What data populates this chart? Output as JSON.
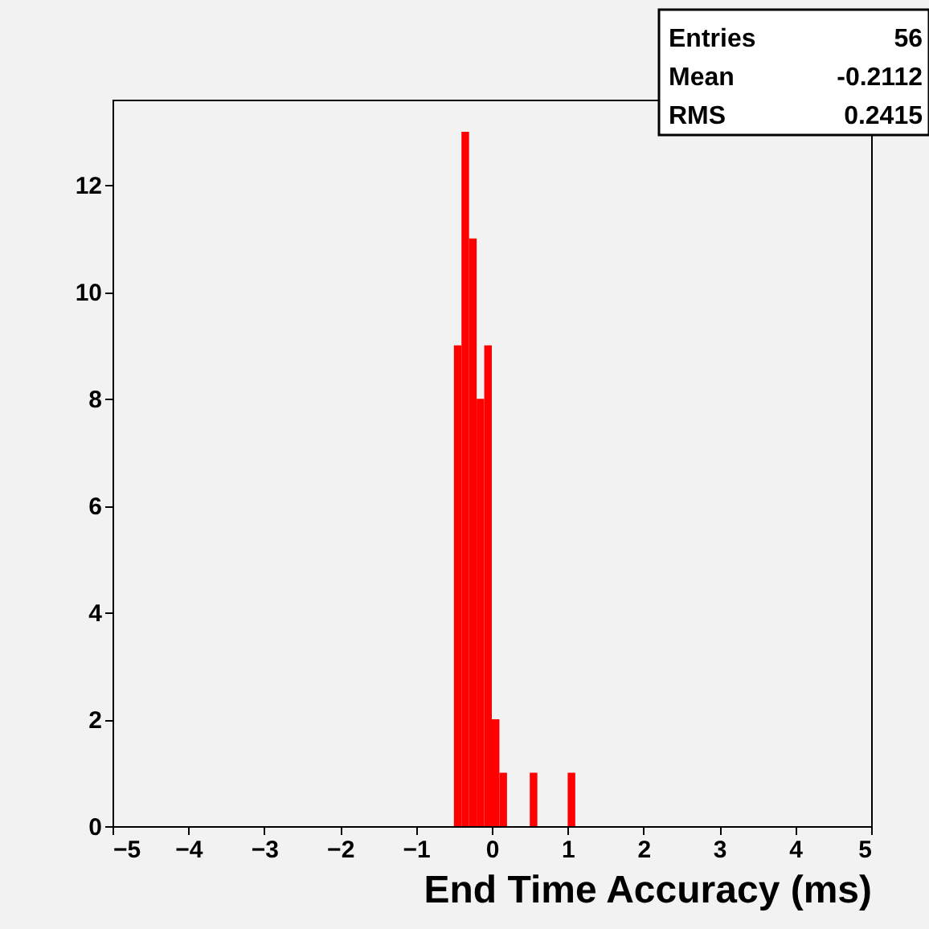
{
  "chart_data": {
    "type": "histogram",
    "bins": [
      -0.5,
      -0.4,
      -0.3,
      -0.2,
      -0.1,
      0,
      0.1,
      0.2,
      0.3,
      0.4,
      0.5,
      0.6,
      0.7,
      0.8,
      0.9,
      1.0,
      1.1
    ],
    "values": [
      9,
      13,
      11,
      8,
      9,
      2,
      1,
      0,
      0,
      0,
      1,
      0,
      0,
      0,
      0,
      1
    ],
    "color": "#ff0000",
    "xlabel": "End Time Accuracy (ms)",
    "xlim": [
      -5,
      5
    ],
    "xticks": [
      -5,
      -4,
      -3,
      -2,
      -1,
      0,
      1,
      2,
      3,
      4,
      5
    ],
    "ylim": [
      0,
      13.6
    ],
    "yticks": [
      0,
      2,
      4,
      6,
      8,
      10,
      12
    ],
    "grid": false,
    "annotations": [
      "Entries 56",
      "Mean -0.2112",
      "RMS 0.2415"
    ]
  }
}
